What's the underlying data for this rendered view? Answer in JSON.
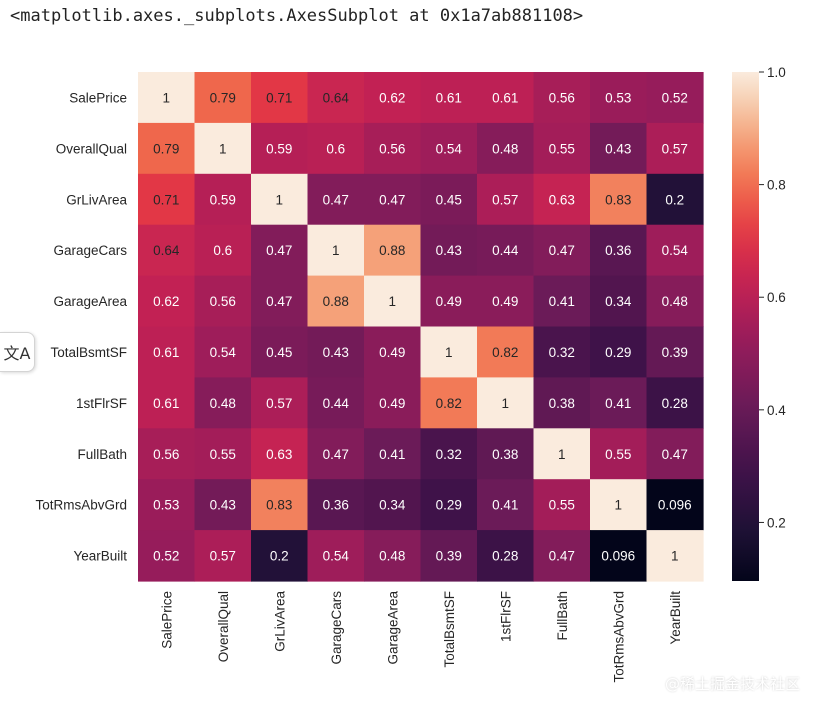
{
  "cell_output": "<matplotlib.axes._subplots.AxesSubplot at 0x1a7ab881108>",
  "translate_button": {
    "glyph": "文A"
  },
  "watermark": "@稀土掘金技术社区",
  "chart_data": {
    "type": "heatmap",
    "title": "",
    "xlabel": "",
    "ylabel": "",
    "row_labels": [
      "SalePrice",
      "OverallQual",
      "GrLivArea",
      "GarageCars",
      "GarageArea",
      "TotalBsmtSF",
      "1stFlrSF",
      "FullBath",
      "TotRmsAbvGrd",
      "YearBuilt"
    ],
    "col_labels": [
      "SalePrice",
      "OverallQual",
      "GrLivArea",
      "GarageCars",
      "GarageArea",
      "TotalBsmtSF",
      "1stFlrSF",
      "FullBath",
      "TotRmsAbvGrd",
      "YearBuilt"
    ],
    "values": [
      [
        1,
        0.79,
        0.71,
        0.64,
        0.62,
        0.61,
        0.61,
        0.56,
        0.53,
        0.52
      ],
      [
        0.79,
        1,
        0.59,
        0.6,
        0.56,
        0.54,
        0.48,
        0.55,
        0.43,
        0.57
      ],
      [
        0.71,
        0.59,
        1,
        0.47,
        0.47,
        0.45,
        0.57,
        0.63,
        0.83,
        0.2
      ],
      [
        0.64,
        0.6,
        0.47,
        1,
        0.88,
        0.43,
        0.44,
        0.47,
        0.36,
        0.54
      ],
      [
        0.62,
        0.56,
        0.47,
        0.88,
        1,
        0.49,
        0.49,
        0.41,
        0.34,
        0.48
      ],
      [
        0.61,
        0.54,
        0.45,
        0.43,
        0.49,
        1,
        0.82,
        0.32,
        0.29,
        0.39
      ],
      [
        0.61,
        0.48,
        0.57,
        0.44,
        0.49,
        0.82,
        1,
        0.38,
        0.41,
        0.28
      ],
      [
        0.56,
        0.55,
        0.63,
        0.47,
        0.41,
        0.32,
        0.38,
        1,
        0.55,
        0.47
      ],
      [
        0.53,
        0.43,
        0.83,
        0.36,
        0.34,
        0.29,
        0.41,
        0.55,
        1,
        0.096
      ],
      [
        0.52,
        0.57,
        0.2,
        0.54,
        0.48,
        0.39,
        0.28,
        0.47,
        0.096,
        1
      ]
    ],
    "annotations": [
      [
        "1",
        "0.79",
        "0.71",
        "0.64",
        "0.62",
        "0.61",
        "0.61",
        "0.56",
        "0.53",
        "0.52"
      ],
      [
        "0.79",
        "1",
        "0.59",
        "0.6",
        "0.56",
        "0.54",
        "0.48",
        "0.55",
        "0.43",
        "0.57"
      ],
      [
        "0.71",
        "0.59",
        "1",
        "0.47",
        "0.47",
        "0.45",
        "0.57",
        "0.63",
        "0.83",
        "0.2"
      ],
      [
        "0.64",
        "0.6",
        "0.47",
        "1",
        "0.88",
        "0.43",
        "0.44",
        "0.47",
        "0.36",
        "0.54"
      ],
      [
        "0.62",
        "0.56",
        "0.47",
        "0.88",
        "1",
        "0.49",
        "0.49",
        "0.41",
        "0.34",
        "0.48"
      ],
      [
        "0.61",
        "0.54",
        "0.45",
        "0.43",
        "0.49",
        "1",
        "0.82",
        "0.32",
        "0.29",
        "0.39"
      ],
      [
        "0.61",
        "0.48",
        "0.57",
        "0.44",
        "0.49",
        "0.82",
        "1",
        "0.38",
        "0.41",
        "0.28"
      ],
      [
        "0.56",
        "0.55",
        "0.63",
        "0.47",
        "0.41",
        "0.32",
        "0.38",
        "1",
        "0.55",
        "0.47"
      ],
      [
        "0.53",
        "0.43",
        "0.83",
        "0.36",
        "0.34",
        "0.29",
        "0.41",
        "0.55",
        "1",
        "0.096"
      ],
      [
        "0.52",
        "0.57",
        "0.2",
        "0.54",
        "0.48",
        "0.39",
        "0.28",
        "0.47",
        "0.096",
        "1"
      ]
    ],
    "colormap": "rocket",
    "vmin": 0.096,
    "vmax": 1.0,
    "colorbar": {
      "ticks": [
        0.2,
        0.4,
        0.6,
        0.8,
        1.0
      ],
      "tick_labels": [
        "0.2",
        "0.4",
        "0.6",
        "0.8",
        "1.0"
      ]
    },
    "grid": false,
    "legend_position": "right"
  }
}
